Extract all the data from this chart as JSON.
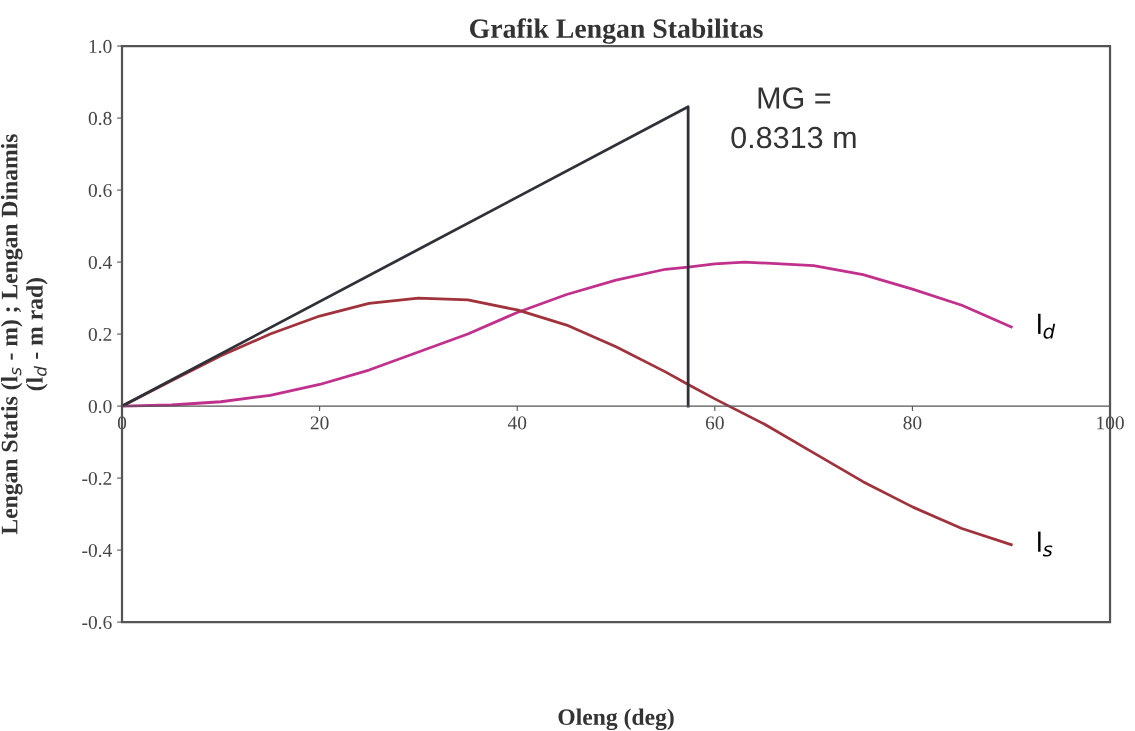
{
  "chart_data": {
    "type": "line",
    "title": "Grafik Lengan Stabilitas",
    "xlabel": "Oleng (deg)",
    "ylabel": "Lengan Statis (l$_{s}$ - m) ; Lengan Dinamis\n(l$_{d}$ - m rad)",
    "series": [
      {
        "name": "l$_{d}$",
        "color": "#c0308c",
        "x": [
          0,
          5,
          10,
          15,
          20,
          25,
          30,
          35,
          40,
          45,
          50,
          55,
          57.3,
          60,
          63,
          70,
          75,
          80,
          85,
          90
        ],
        "values": [
          0,
          0.003,
          0.012,
          0.03,
          0.06,
          0.1,
          0.15,
          0.2,
          0.26,
          0.31,
          0.35,
          0.38,
          0.386,
          0.395,
          0.4,
          0.39,
          0.365,
          0.325,
          0.28,
          0.22
        ]
      },
      {
        "name": "l$_{s}$",
        "color": "#a0323c",
        "x": [
          0,
          5,
          10,
          15,
          20,
          25,
          30,
          35,
          40,
          45,
          50,
          55,
          57.3,
          60,
          65,
          70,
          75,
          80,
          85,
          90
        ],
        "values": [
          0,
          0.07,
          0.14,
          0.2,
          0.25,
          0.285,
          0.3,
          0.295,
          0.267,
          0.225,
          0.165,
          0.095,
          0.06,
          0.02,
          -0.05,
          -0.13,
          -0.21,
          -0.28,
          -0.34,
          -0.385
        ]
      },
      {
        "color": "#303038",
        "x": [
          0,
          57.3,
          57.3
        ],
        "values": [
          0,
          0.8313,
          0
        ]
      }
    ],
    "annotations": [
      "MG =\n0.8313 m"
    ],
    "xlim": [
      0,
      100
    ],
    "xticks": [
      0,
      20,
      40,
      60,
      80,
      100
    ],
    "ylim": [
      -0.6,
      1.0
    ],
    "yticks": [
      {
        "value": -0.6,
        "label": "-0.6"
      },
      {
        "value": -0.4,
        "label": "-0.4"
      },
      {
        "value": -0.2,
        "label": "-0.2"
      },
      {
        "value": 0,
        "label": "0.0"
      },
      {
        "value": 0.2,
        "label": "0.2"
      },
      {
        "value": 0.4,
        "label": "0.4"
      },
      {
        "value": 0.6,
        "label": "0.6"
      },
      {
        "value": 0.8,
        "label": "0.8"
      },
      {
        "value": 1.0,
        "label": "1.0"
      }
    ],
    "grid": false,
    "legend": false,
    "marker": "none",
    "line_style": "solid"
  }
}
